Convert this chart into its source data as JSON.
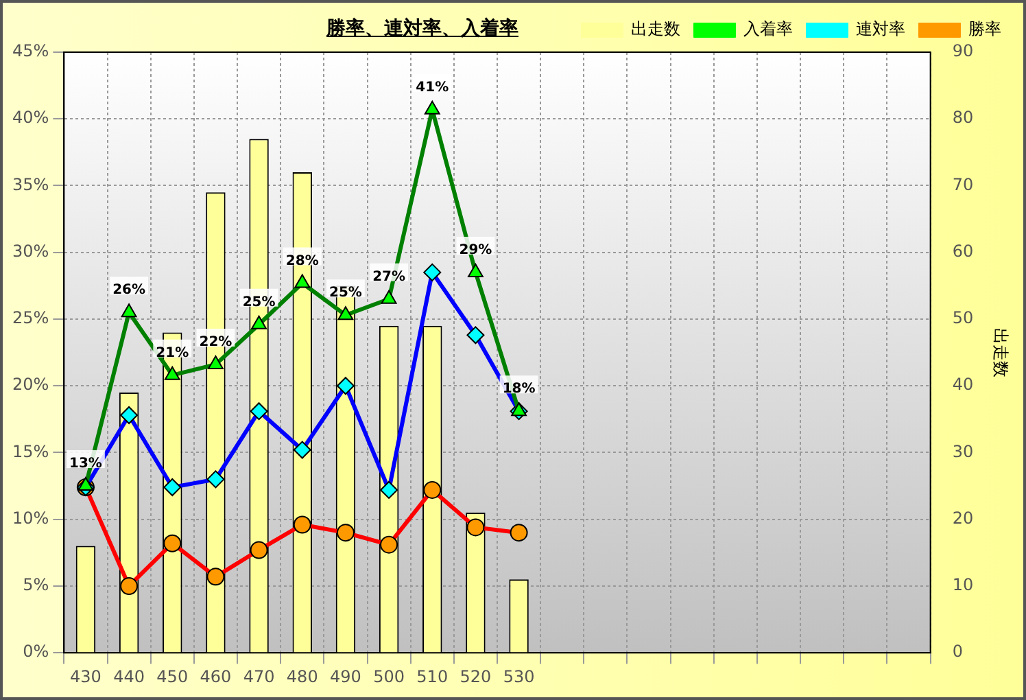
{
  "chart_data": {
    "type": "line",
    "title": "勝率、連対率、入着率",
    "y2label": "出走数",
    "categories": [
      "430",
      "440",
      "450",
      "460",
      "470",
      "480",
      "490",
      "500",
      "510",
      "520",
      "530",
      null,
      null,
      null,
      null,
      null,
      null,
      null,
      null,
      null
    ],
    "series": [
      {
        "name": "出走数",
        "type": "bar",
        "axis": "y2",
        "color": "#ffff99",
        "values": [
          16,
          39,
          48,
          69,
          77,
          72,
          55,
          49,
          49,
          21,
          11,
          null,
          null,
          null,
          null,
          null,
          null,
          null,
          null,
          null
        ]
      },
      {
        "name": "入着率",
        "marker": "triangle",
        "color": "#008000",
        "values": [
          12.5,
          25.5,
          20.8,
          21.6,
          24.6,
          27.7,
          25.3,
          26.5,
          40.7,
          28.5,
          18.1,
          null,
          null,
          null,
          null,
          null,
          null,
          null,
          null,
          null
        ],
        "value_labels": [
          "13%",
          "26%",
          "21%",
          "22%",
          "25%",
          "28%",
          "25%",
          "27%",
          "41%",
          "29%",
          "18%",
          null,
          null,
          null,
          null,
          null,
          null,
          null,
          null,
          null
        ]
      },
      {
        "name": "連対率",
        "marker": "diamond",
        "color": "#0000ff",
        "values": [
          12.4,
          17.8,
          12.4,
          13.0,
          18.1,
          15.2,
          20.0,
          12.2,
          28.5,
          23.8,
          18.1,
          null,
          null,
          null,
          null,
          null,
          null,
          null,
          null,
          null
        ]
      },
      {
        "name": "勝率",
        "marker": "circle",
        "color": "#ff0000",
        "values": [
          12.4,
          5.0,
          8.2,
          5.7,
          7.7,
          9.6,
          9.0,
          8.1,
          12.2,
          9.4,
          9.0,
          null,
          null,
          null,
          null,
          null,
          null,
          null,
          null,
          null
        ]
      }
    ],
    "ylim": [
      0,
      45
    ],
    "yticks": [
      {
        "value": 0,
        "label": "0%"
      },
      {
        "value": 5,
        "label": "5%"
      },
      {
        "value": 10,
        "label": "10%"
      },
      {
        "value": 15,
        "label": "15%"
      },
      {
        "value": 20,
        "label": "20%"
      },
      {
        "value": 25,
        "label": "25%"
      },
      {
        "value": 30,
        "label": "30%"
      },
      {
        "value": 35,
        "label": "35%"
      },
      {
        "value": 40,
        "label": "40%"
      },
      {
        "value": 45,
        "label": "45%"
      }
    ],
    "y2lim": [
      0,
      90
    ],
    "y2ticks": [
      0,
      10,
      20,
      30,
      40,
      50,
      60,
      70,
      80,
      90
    ],
    "grid": true,
    "legend": "top right",
    "line_style": "solid"
  }
}
